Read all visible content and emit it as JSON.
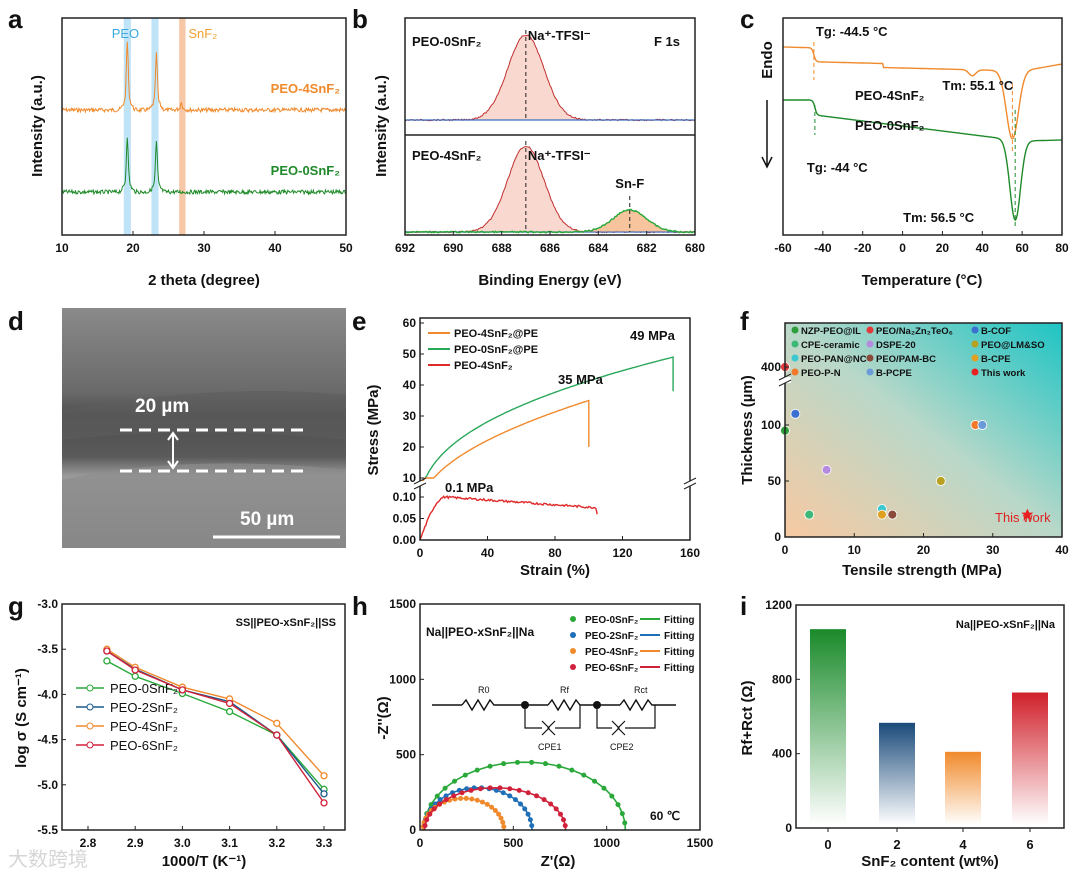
{
  "watermark": "大数跨境",
  "chart_data": [
    {
      "panel": "a",
      "type": "line",
      "xlabel": "2 theta (degree)",
      "ylabel": "Intensity (a.u.)",
      "xlim": [
        10,
        50
      ],
      "xticks": [
        10,
        20,
        30,
        40,
        50
      ],
      "bands": [
        {
          "label": "PEO",
          "ranges": [
            [
              18.7,
              19.7
            ],
            [
              22.6,
              23.6
            ]
          ],
          "color": "#bfe3f7"
        },
        {
          "label": "SnF₂",
          "ranges": [
            [
              26.5,
              27.4
            ]
          ],
          "color": "#f6c8a8"
        }
      ],
      "series": [
        {
          "name": "PEO-4SnF₂",
          "color": "#f08a2c",
          "peaks": [
            [
              19.2,
              55
            ],
            [
              23.3,
              45
            ],
            [
              26.8,
              6
            ]
          ]
        },
        {
          "name": "PEO-0SnF₂",
          "color": "#1f8a2a",
          "peaks": [
            [
              19.2,
              45
            ],
            [
              23.3,
              40
            ]
          ]
        }
      ]
    },
    {
      "panel": "b",
      "type": "line",
      "xlabel": "Binding Energy (eV)",
      "ylabel": "Intensity (a.u.)",
      "xlim": [
        692,
        680
      ],
      "xticks": [
        692,
        690,
        688,
        686,
        684,
        682,
        680
      ],
      "label": "F 1s",
      "series": [
        {
          "name": "PEO-0SnF₂",
          "peaks": [
            {
              "label": "Na⁺-TFSI⁻",
              "center": 687.0
            }
          ]
        },
        {
          "name": "PEO-4SnF₂",
          "peaks": [
            {
              "label": "Na⁺-TFSI⁻",
              "center": 687.0
            },
            {
              "label": "Sn-F",
              "center": 682.7
            }
          ]
        }
      ]
    },
    {
      "panel": "c",
      "type": "line",
      "xlabel": "Temperature (°C)",
      "ylabel": "Endo",
      "xlim": [
        -60,
        80
      ],
      "xticks": [
        -60,
        -40,
        -20,
        0,
        20,
        40,
        60,
        80
      ],
      "series": [
        {
          "name": "PEO-4SnF₂",
          "color": "#f08a2c",
          "Tg_label": "Tg: -44.5 °C",
          "Tm_label": "Tm: 55.1 °C",
          "Tg": -44.5,
          "Tm": 55.1
        },
        {
          "name": "PEO-0SnF₂",
          "color": "#1f8a2a",
          "Tg_label": "Tg: -44 °C",
          "Tm_label": "Tm: 56.5 °C",
          "Tg": -44,
          "Tm": 56.5
        }
      ]
    },
    {
      "panel": "d",
      "type": "image",
      "thickness_label": "20 µm",
      "scale_label": "50 µm"
    },
    {
      "panel": "e",
      "type": "line",
      "xlabel": "Strain (%)",
      "ylabel": "Stress (MPa)",
      "xlim": [
        0,
        160
      ],
      "xticks": [
        0,
        40,
        80,
        120,
        160
      ],
      "yticks_upper": [
        10,
        20,
        30,
        40,
        50,
        60
      ],
      "yticks_lower": [
        "0.00",
        "0.05",
        "0.10"
      ],
      "series": [
        {
          "name": "PEO-4SnF₂@PE",
          "color": "#f08a2c",
          "max_strain": 100,
          "max_stress": 35,
          "label": "35 MPa"
        },
        {
          "name": "PEO-0SnF₂@PE",
          "color": "#2aa85a",
          "max_strain": 150,
          "max_stress": 49,
          "label": "49 MPa"
        },
        {
          "name": "PEO-4SnF₂",
          "color": "#e02a2a",
          "max_strain": 105,
          "max_stress": 0.1,
          "label": "0.1 MPa"
        }
      ]
    },
    {
      "panel": "f",
      "type": "scatter",
      "xlabel": "Tensile strength (MPa)",
      "ylabel": "Thickness (µm)",
      "xlim": [
        0,
        40
      ],
      "xticks": [
        0,
        10,
        20,
        30,
        40
      ],
      "yticks": [
        0,
        50,
        100,
        400
      ],
      "points": [
        {
          "name": "NZP-PEO@IL",
          "x": 0,
          "y": 95,
          "color": "#2f9e3a"
        },
        {
          "name": "PEO/Na₂Zn₂TeO₆",
          "x": 0,
          "y": 400,
          "color": "#e23a3a"
        },
        {
          "name": "B-COF",
          "x": 1.5,
          "y": 110,
          "color": "#3b6fd1"
        },
        {
          "name": "CPE-ceramic",
          "x": 3.5,
          "y": 20,
          "color": "#3cb878"
        },
        {
          "name": "DSPE-20",
          "x": 6,
          "y": 60,
          "color": "#b58be0"
        },
        {
          "name": "PEO@LM&SO",
          "x": 22.5,
          "y": 50,
          "color": "#b8a020"
        },
        {
          "name": "PEO-PAN@NC",
          "x": 14,
          "y": 25,
          "color": "#3cc8d0"
        },
        {
          "name": "PEO/PAM-BC",
          "x": 15.5,
          "y": 20,
          "color": "#8a4a3a"
        },
        {
          "name": "B-CPE",
          "x": 14,
          "y": 20,
          "color": "#e0a020"
        },
        {
          "name": "PEO-P-N",
          "x": 27.5,
          "y": 100,
          "color": "#f07a2a"
        },
        {
          "name": "B-PCPE",
          "x": 28.5,
          "y": 100,
          "color": "#6a9ad8"
        },
        {
          "name": "This work",
          "x": 35,
          "y": 20,
          "color": "#e82020"
        }
      ],
      "annotation": "This work"
    },
    {
      "panel": "g",
      "type": "line",
      "xlabel": "1000/T (K⁻¹)",
      "ylabel": "log σ (S cm⁻¹)",
      "xlim": [
        2.75,
        3.35
      ],
      "ylim": [
        -5.5,
        -3.0
      ],
      "xticks": [
        "2.8",
        "2.9",
        "3.0",
        "3.1",
        "3.2",
        "3.3"
      ],
      "yticks": [
        "-3.0",
        "-3.5",
        "-4.0",
        "-4.5",
        "-5.0",
        "-5.5"
      ],
      "label": "SS||PEO-xSnF₂||SS",
      "x": [
        2.84,
        2.9,
        3.0,
        3.1,
        3.2,
        3.3
      ],
      "series": [
        {
          "name": "PEO-0SnF₂",
          "color": "#2aa83a",
          "values": [
            -3.63,
            -3.8,
            -3.99,
            -4.19,
            -4.45,
            -5.05
          ]
        },
        {
          "name": "PEO-2SnF₂",
          "color": "#1a5a8a",
          "values": [
            -3.52,
            -3.72,
            -3.95,
            -4.08,
            -4.45,
            -5.1
          ]
        },
        {
          "name": "PEO-4SnF₂",
          "color": "#f08a2c",
          "values": [
            -3.5,
            -3.7,
            -3.92,
            -4.05,
            -4.32,
            -4.9
          ]
        },
        {
          "name": "PEO-6SnF₂",
          "color": "#d0203a",
          "values": [
            -3.52,
            -3.73,
            -3.95,
            -4.1,
            -4.45,
            -5.2
          ]
        }
      ]
    },
    {
      "panel": "h",
      "type": "scatter",
      "xlabel": "Z'(Ω)",
      "ylabel": "-Z''(Ω)",
      "xlim": [
        0,
        1500
      ],
      "ylim": [
        0,
        1500
      ],
      "xticks": [
        0,
        500,
        1000,
        1500
      ],
      "yticks": [
        0,
        500,
        1000,
        1500
      ],
      "label": "Na||PEO-xSnF₂||Na",
      "temp": "60 ℃",
      "fit_label": "Fitting",
      "circuit": [
        "R0",
        "Rf",
        "Rct",
        "CPE1",
        "CPE2"
      ],
      "series": [
        {
          "name": "PEO-0SnF₂",
          "color": "#2aa83a",
          "z_start": 20,
          "z_end": 1100,
          "peak": 450
        },
        {
          "name": "PEO-2SnF₂",
          "color": "#1f6fb8",
          "z_start": 20,
          "z_end": 600,
          "peak": 280
        },
        {
          "name": "PEO-4SnF₂",
          "color": "#f08a2c",
          "z_start": 15,
          "z_end": 450,
          "peak": 210
        },
        {
          "name": "PEO-6SnF₂",
          "color": "#d0203a",
          "z_start": 25,
          "z_end": 780,
          "peak": 280
        }
      ]
    },
    {
      "panel": "i",
      "type": "bar",
      "xlabel": "SnF₂ content (wt%)",
      "ylabel": "Rf+Rct (Ω)",
      "ylim": [
        0,
        1200
      ],
      "yticks": [
        0,
        400,
        800,
        1200
      ],
      "label": "Na||PEO-xSnF₂||Na",
      "categories": [
        "0",
        "2",
        "4",
        "6"
      ],
      "values": [
        1070,
        566,
        410,
        729
      ],
      "colors": [
        "#1a8a2a",
        "#1a4a7a",
        "#f08a2c",
        "#d0202a"
      ]
    }
  ]
}
